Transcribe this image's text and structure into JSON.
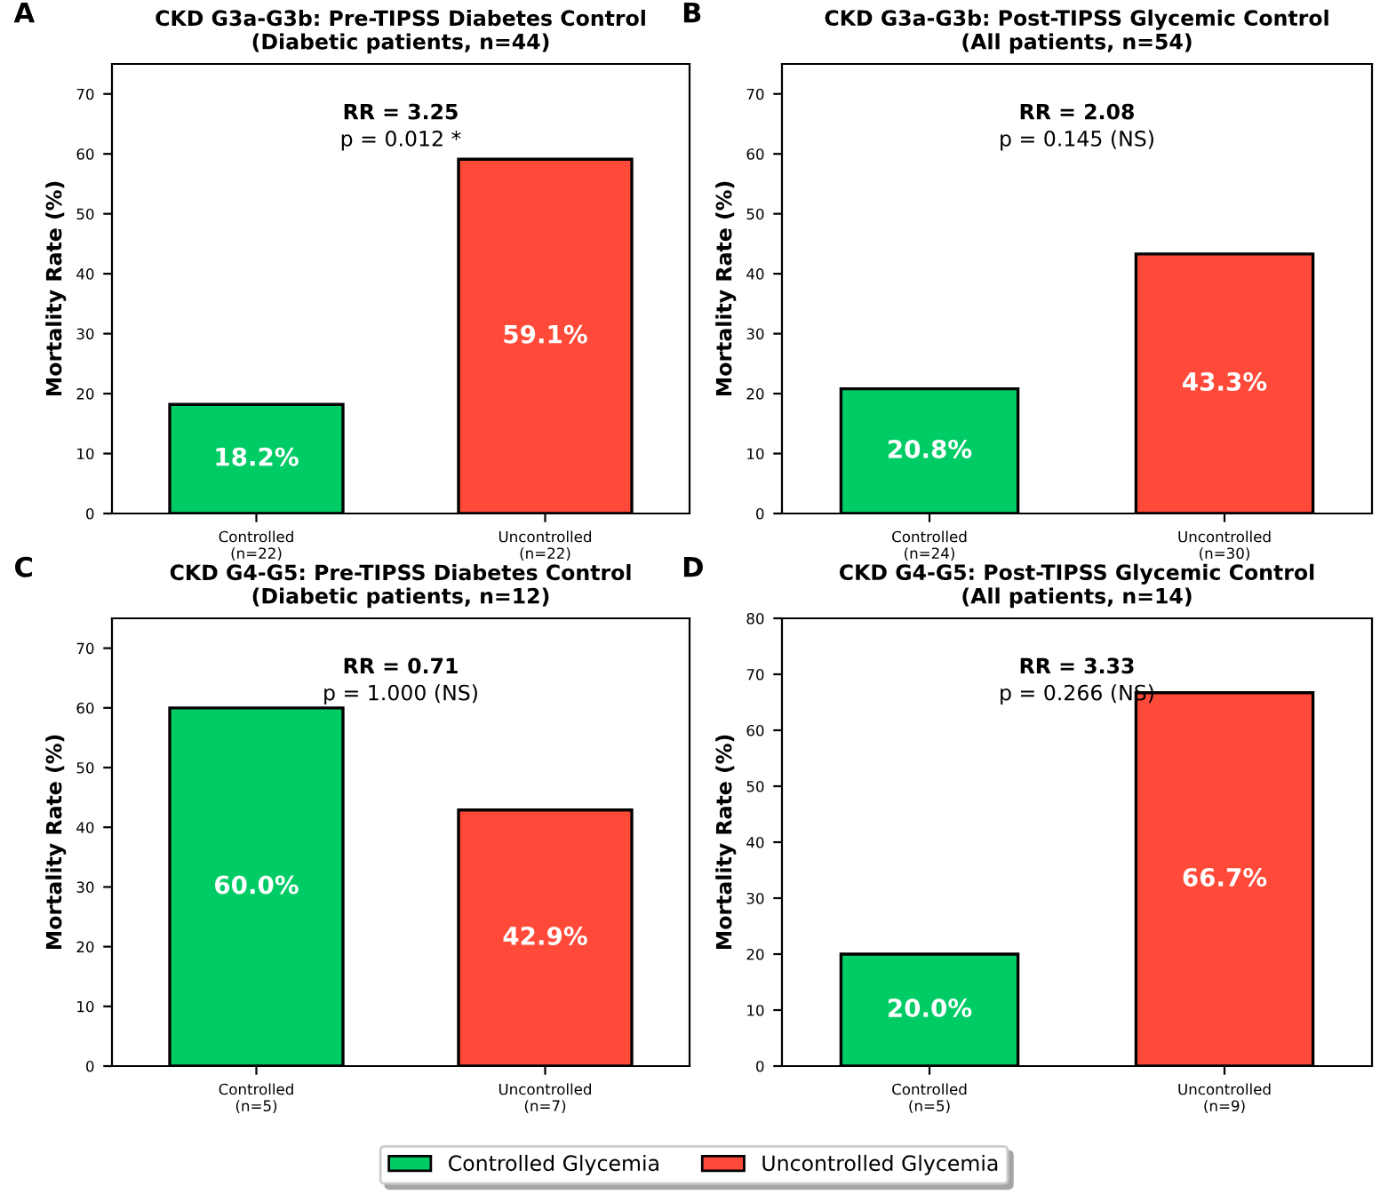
{
  "chart_data": [
    {
      "type": "bar",
      "title": "CKD G3a-G3b: Pre-TIPSS Diabetes Control\n(Diabetic patients, n=44)",
      "ylabel": "Mortality Rate (%)",
      "categories": [
        "Controlled\n(n=22)",
        "Uncontrolled\n(n=22)"
      ],
      "legend": "bottom",
      "series": [
        {
          "name": "Controlled Glycemia",
          "color": "#00cc66",
          "values": [
            18.2,
            null
          ],
          "value_labels": [
            "18.2%",
            null
          ]
        },
        {
          "name": "Uncontrolled Glycemia",
          "color": "#ff4a3a",
          "values": [
            null,
            59.1
          ],
          "value_labels": [
            null,
            "59.1%"
          ]
        }
      ],
      "ylim": [
        0,
        75
      ],
      "yticks": [
        0,
        10,
        20,
        30,
        40,
        50,
        60,
        70
      ],
      "annotations": [
        "A",
        "RR = 3.25",
        "p = 0.012 *"
      ]
    },
    {
      "type": "bar",
      "title": "CKD G3a-G3b: Post-TIPSS Glycemic Control\n(All patients, n=54)",
      "ylabel": "Mortality Rate (%)",
      "categories": [
        "Controlled\n(n=24)",
        "Uncontrolled\n(n=30)"
      ],
      "series": [
        {
          "color": "#00cc66",
          "values": [
            20.8,
            null
          ],
          "value_labels": [
            "20.8%",
            null
          ]
        },
        {
          "color": "#ff4a3a",
          "values": [
            null,
            43.3
          ],
          "value_labels": [
            null,
            "43.3%"
          ]
        }
      ],
      "ylim": [
        0,
        75
      ],
      "yticks": [
        0,
        10,
        20,
        30,
        40,
        50,
        60,
        70
      ],
      "annotations": [
        "B",
        "RR = 2.08",
        "p = 0.145 (NS)"
      ]
    },
    {
      "type": "bar",
      "title": "CKD G4-G5: Pre-TIPSS Diabetes Control\n(Diabetic patients, n=12)",
      "ylabel": "Mortality Rate (%)",
      "categories": [
        "Controlled\n(n=5)",
        "Uncontrolled\n(n=7)"
      ],
      "series": [
        {
          "color": "#00cc66",
          "values": [
            60.0,
            null
          ],
          "value_labels": [
            "60.0%",
            null
          ]
        },
        {
          "color": "#ff4a3a",
          "values": [
            null,
            42.9
          ],
          "value_labels": [
            null,
            "42.9%"
          ]
        }
      ],
      "ylim": [
        0,
        75
      ],
      "yticks": [
        0,
        10,
        20,
        30,
        40,
        50,
        60,
        70
      ],
      "annotations": [
        "C",
        "RR = 0.71",
        "p = 1.000 (NS)"
      ]
    },
    {
      "type": "bar",
      "title": "CKD G4-G5: Post-TIPSS Glycemic Control\n(All patients, n=14)",
      "ylabel": "Mortality Rate (%)",
      "categories": [
        "Controlled\n(n=5)",
        "Uncontrolled\n(n=9)"
      ],
      "series": [
        {
          "color": "#00cc66",
          "values": [
            20.0,
            null
          ],
          "value_labels": [
            "20.0%",
            null
          ]
        },
        {
          "color": "#ff4a3a",
          "values": [
            null,
            66.7
          ],
          "value_labels": [
            null,
            "66.7%"
          ]
        }
      ],
      "ylim": [
        0,
        80
      ],
      "yticks": [
        0,
        10,
        20,
        30,
        40,
        50,
        60,
        70,
        80
      ],
      "annotations": [
        "D",
        "RR = 3.33",
        "p = 0.266 (NS)"
      ]
    }
  ]
}
